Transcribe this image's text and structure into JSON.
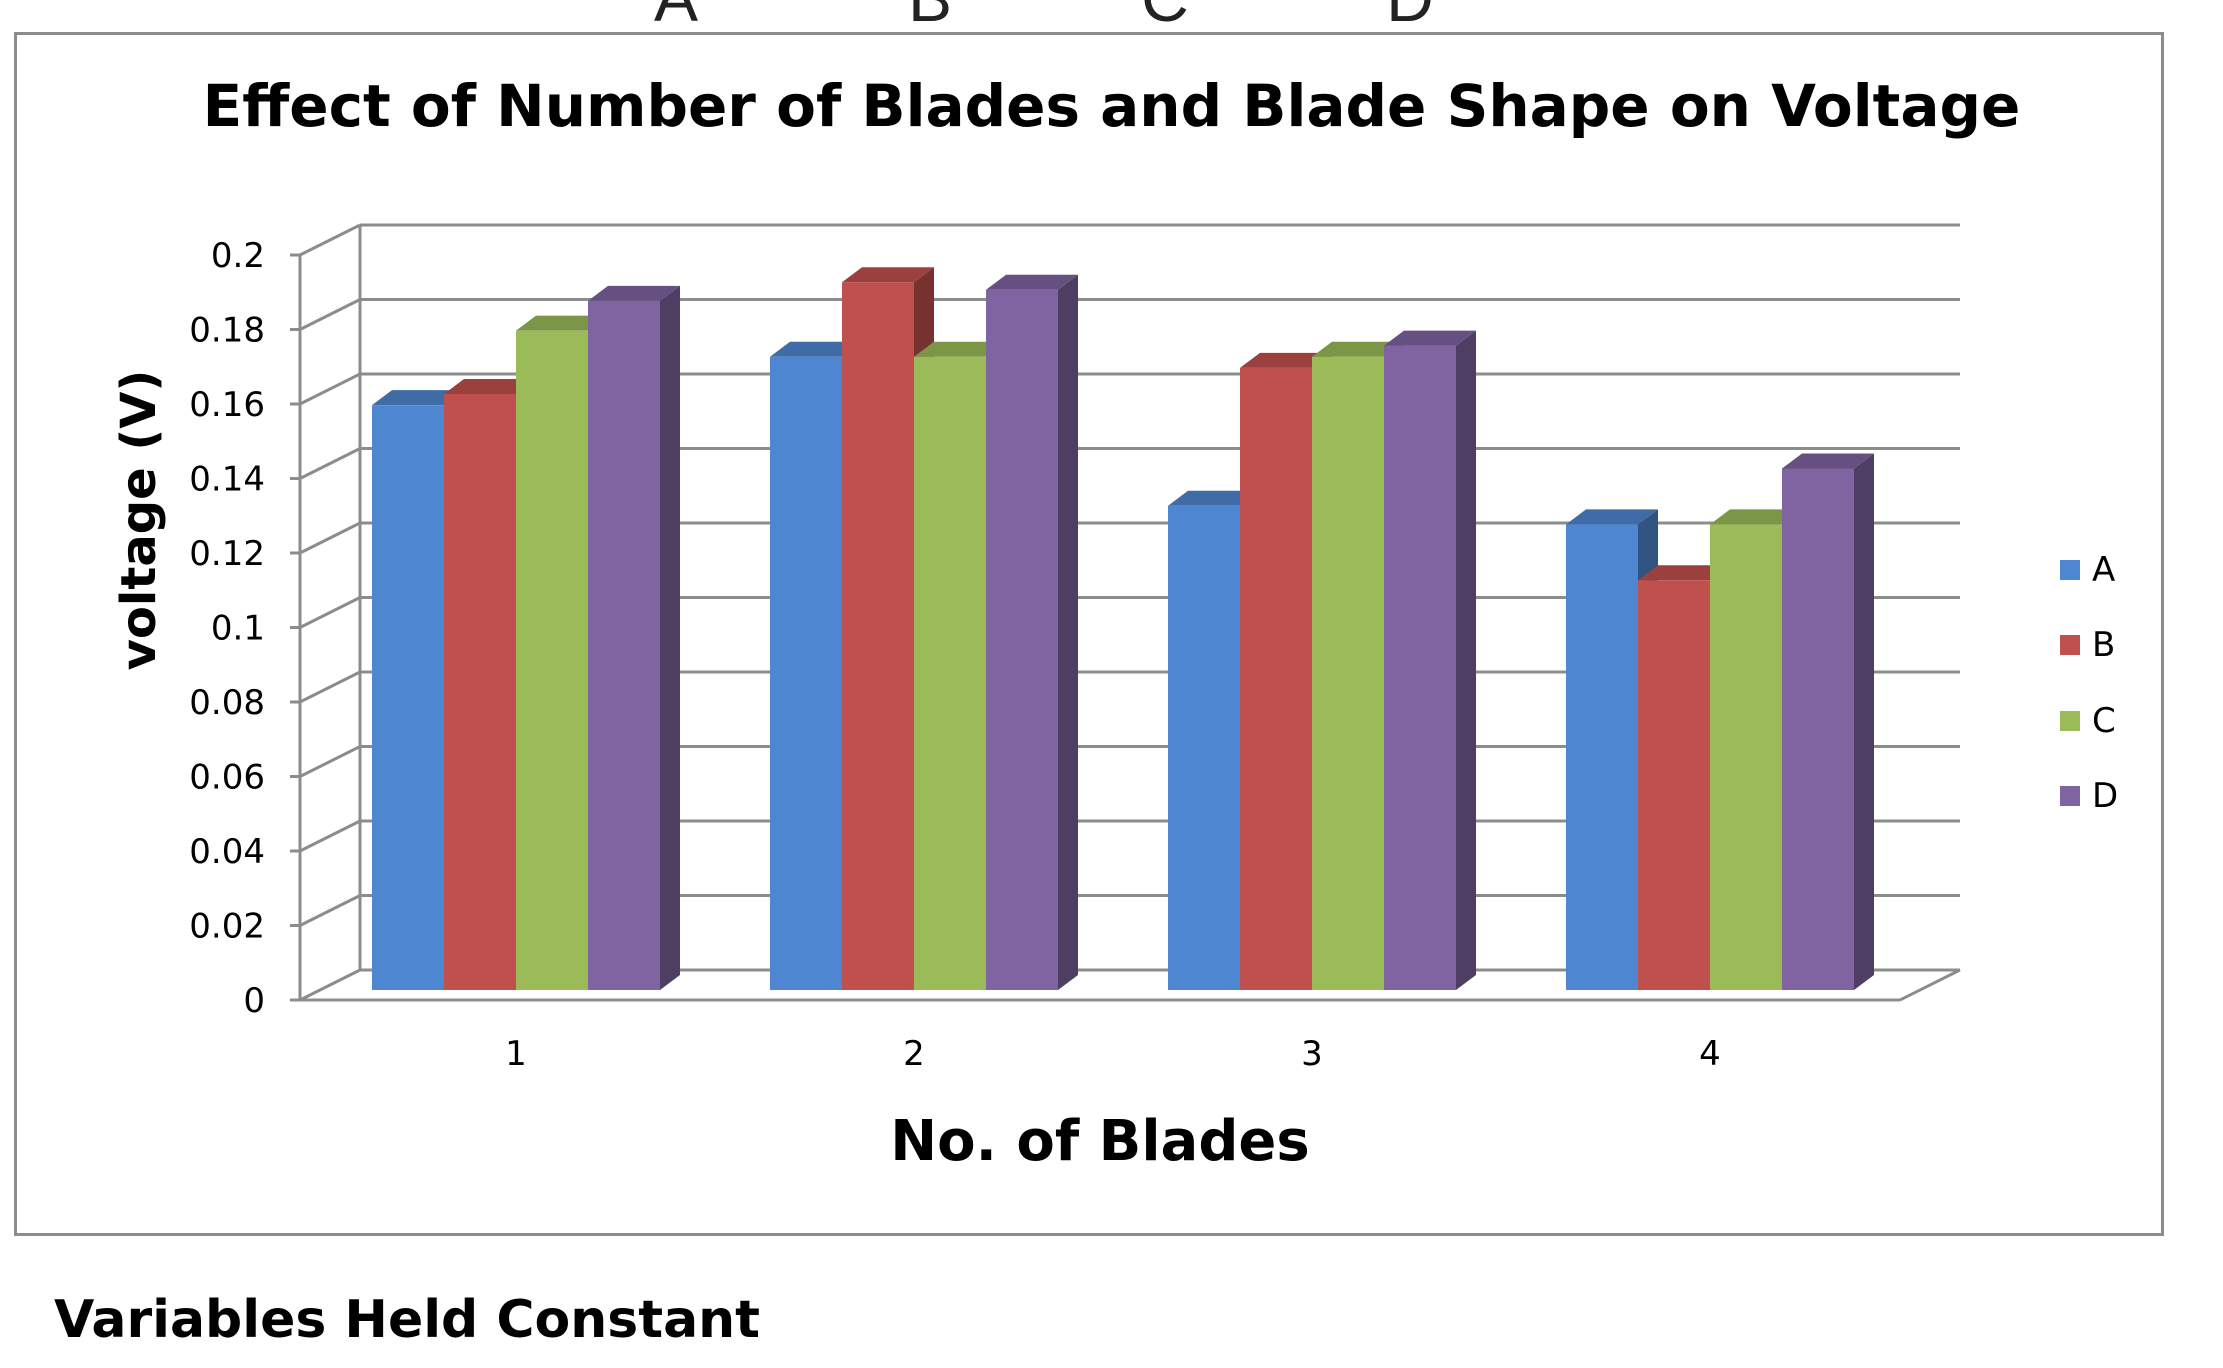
{
  "top_letters": [
    "A",
    "B",
    "C",
    "D"
  ],
  "bottom_heading": "Variables Held Constant",
  "chart_data": {
    "type": "bar",
    "title": "Effect of Number of Blades and Blade Shape on Voltage",
    "xlabel": "No. of Blades",
    "ylabel": "voltage (V)",
    "categories": [
      "1",
      "2",
      "3",
      "4"
    ],
    "ylim": [
      0,
      0.2
    ],
    "yticks": [
      "0",
      "0.02",
      "0.04",
      "0.06",
      "0.08",
      "0.1",
      "0.12",
      "0.14",
      "0.16",
      "0.18",
      "0.2"
    ],
    "grid": true,
    "legend_position": "right",
    "series": [
      {
        "name": "A",
        "color": "#4f86d1",
        "values": [
          0.157,
          0.17,
          0.13,
          0.125
        ]
      },
      {
        "name": "B",
        "color": "#c0504d",
        "values": [
          0.16,
          0.19,
          0.167,
          0.11
        ]
      },
      {
        "name": "C",
        "color": "#9bbb59",
        "values": [
          0.177,
          0.17,
          0.17,
          0.125
        ]
      },
      {
        "name": "D",
        "color": "#8064a2",
        "values": [
          0.185,
          0.188,
          0.173,
          0.14
        ]
      }
    ]
  }
}
